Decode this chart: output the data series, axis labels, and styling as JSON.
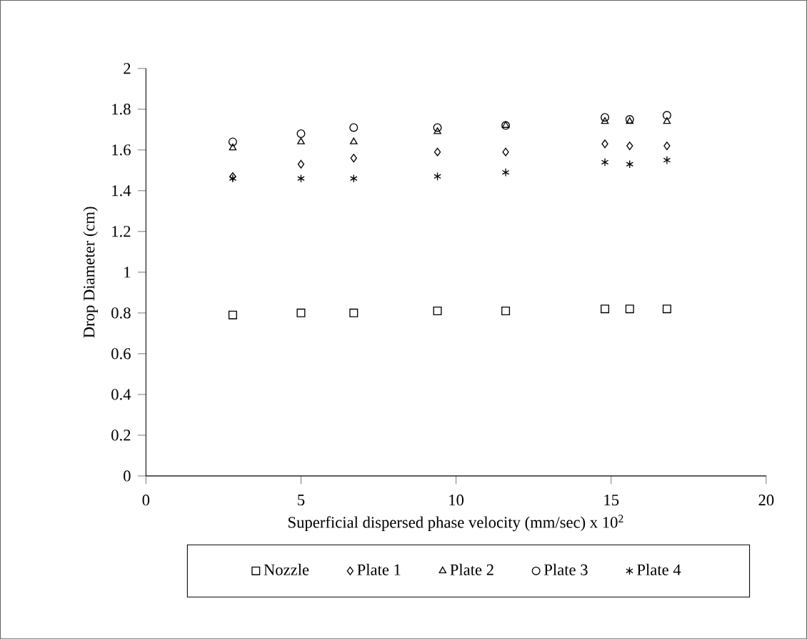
{
  "chart_data": {
    "type": "scatter",
    "xlabel": "Superficial dispersed phase velocity (mm/sec) x 10$^{2}$",
    "ylabel": "Drop Diameter (cm)",
    "x": [
      2.8,
      5,
      6.7,
      9.4,
      11.6,
      14.8,
      15.6,
      16.8
    ],
    "series": [
      {
        "name": "Nozzle",
        "color": "#000000",
        "marker": "square",
        "values": [
          0.79,
          0.8,
          0.8,
          0.81,
          0.81,
          0.82,
          0.82,
          0.82
        ]
      },
      {
        "name": "Plate 1",
        "color": "#000000",
        "marker": "diamond",
        "values": [
          1.47,
          1.53,
          1.56,
          1.59,
          1.59,
          1.63,
          1.62,
          1.62
        ]
      },
      {
        "name": "Plate 2",
        "color": "#000000",
        "marker": "triangle",
        "values": [
          1.61,
          1.64,
          1.64,
          1.69,
          1.72,
          1.74,
          1.74,
          1.74
        ]
      },
      {
        "name": "Plate 3",
        "color": "#000000",
        "marker": "circle",
        "values": [
          1.64,
          1.68,
          1.71,
          1.71,
          1.72,
          1.76,
          1.75,
          1.77
        ]
      },
      {
        "name": "Plate 4",
        "color": "#000000",
        "marker": "cross",
        "values": [
          1.46,
          1.46,
          1.46,
          1.47,
          1.49,
          1.54,
          1.53,
          1.55
        ]
      }
    ],
    "xlim": [
      0,
      20
    ],
    "xticks": [
      0,
      5,
      10,
      15,
      20
    ],
    "ylim": [
      0,
      2
    ],
    "yticks": [
      0,
      0.2,
      0.4,
      0.6,
      0.8,
      1,
      1.2,
      1.4,
      1.6,
      1.8,
      2
    ],
    "grid": false,
    "legend": "bottom"
  }
}
